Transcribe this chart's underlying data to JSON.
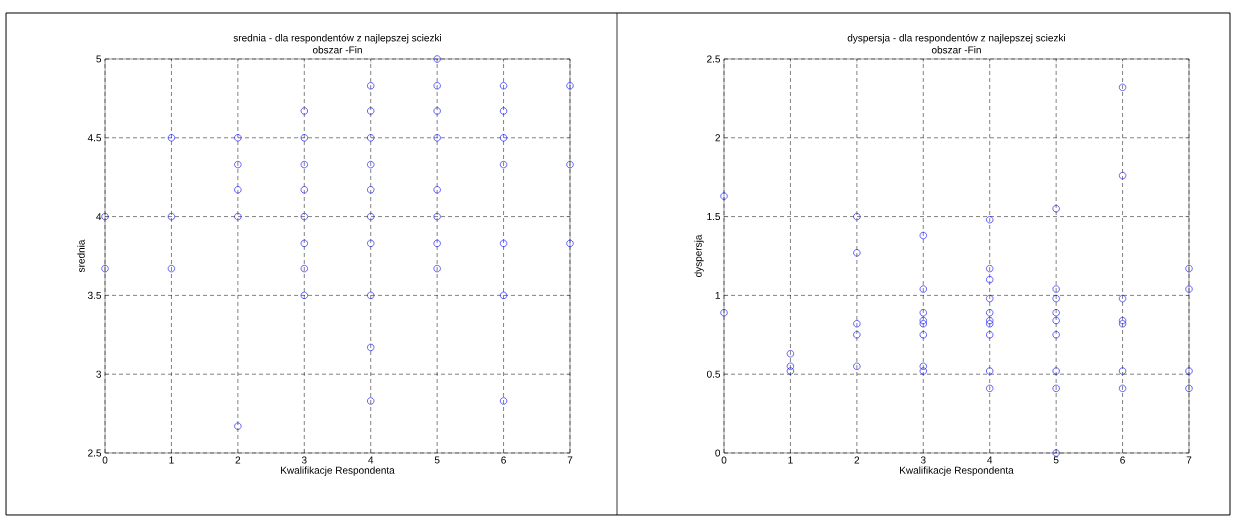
{
  "chart_data": [
    {
      "type": "scatter",
      "title": "srednia - dla respondentów z najlepszej sciezki",
      "subtitle": "obszar -Fin",
      "xlabel": "Kwalifikacje Respondenta",
      "ylabel": "srednia",
      "color": "#0000ff",
      "marker": "circle",
      "grid": true,
      "x": [
        0,
        0,
        1,
        1,
        1,
        2,
        2,
        2,
        2,
        2,
        3,
        3,
        3,
        3,
        3,
        3,
        3,
        3,
        4,
        4,
        4,
        4,
        4,
        4,
        4,
        4,
        4,
        4,
        5,
        5,
        5,
        5,
        5,
        5,
        5,
        5,
        6,
        6,
        6,
        6,
        6,
        6,
        6,
        7,
        7,
        7
      ],
      "values": [
        4.0,
        3.67,
        4.5,
        4.0,
        3.67,
        4.5,
        4.33,
        4.17,
        4.0,
        2.67,
        4.67,
        4.5,
        4.33,
        4.17,
        4.0,
        3.83,
        3.67,
        3.5,
        4.83,
        4.67,
        4.5,
        4.33,
        4.17,
        4.0,
        3.83,
        3.5,
        3.17,
        2.83,
        5.0,
        4.83,
        4.67,
        4.5,
        4.17,
        4.0,
        3.83,
        3.67,
        4.83,
        4.67,
        4.5,
        4.33,
        3.83,
        3.5,
        2.83,
        4.83,
        4.33,
        3.83
      ],
      "xlim": [
        0,
        7
      ],
      "ylim": [
        2.5,
        5
      ],
      "xticks": [
        0,
        1,
        2,
        3,
        4,
        5,
        6,
        7
      ],
      "yticks": [
        2.5,
        3,
        3.5,
        4,
        4.5,
        5
      ]
    },
    {
      "type": "scatter",
      "title": "dyspersja - dla respondentów z najlepszej sciezki",
      "subtitle": "obszar -Fin",
      "xlabel": "Kwalifikacje Respondenta",
      "ylabel": "dyspersja",
      "color": "#0000ff",
      "marker": "circle",
      "grid": true,
      "x": [
        0,
        0,
        1,
        1,
        1,
        2,
        2,
        2,
        2,
        2,
        3,
        3,
        3,
        3,
        3,
        3,
        3,
        3,
        4,
        4,
        4,
        4,
        4,
        4,
        4,
        4,
        4,
        4,
        5,
        5,
        5,
        5,
        5,
        5,
        5,
        5,
        5,
        6,
        6,
        6,
        6,
        6,
        6,
        6,
        7,
        7,
        7,
        7
      ],
      "values": [
        1.63,
        0.89,
        0.63,
        0.55,
        0.52,
        1.5,
        1.27,
        0.82,
        0.75,
        0.55,
        1.38,
        1.04,
        0.89,
        0.84,
        0.82,
        0.75,
        0.55,
        0.52,
        1.48,
        1.17,
        1.1,
        0.98,
        0.89,
        0.84,
        0.82,
        0.75,
        0.52,
        0.41,
        1.55,
        1.04,
        0.98,
        0.89,
        0.84,
        0.75,
        0.52,
        0.41,
        0,
        2.32,
        1.76,
        0.98,
        0.84,
        0.82,
        0.52,
        0.41,
        1.17,
        1.04,
        0.52,
        0.41
      ],
      "xlim": [
        0,
        7
      ],
      "ylim": [
        0,
        2.5
      ],
      "xticks": [
        0,
        1,
        2,
        3,
        4,
        5,
        6,
        7
      ],
      "yticks": [
        0,
        0.5,
        1,
        1.5,
        2,
        2.5
      ]
    }
  ]
}
